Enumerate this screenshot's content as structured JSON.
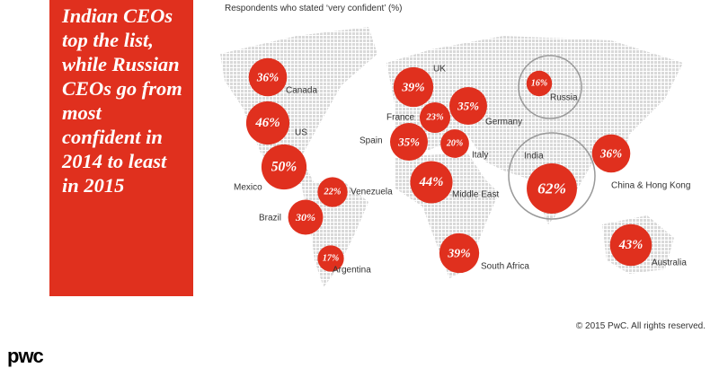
{
  "chart_data": {
    "type": "bubble-map",
    "title": "Indian CEOs top the list, while Russian CEOs go from most confident in 2014 to least in 2015",
    "subtitle": "Respondents who stated ‘very confident’  (%)",
    "categories": [
      "Canada",
      "US",
      "Mexico",
      "Venezuela",
      "Brazil",
      "Argentina",
      "UK",
      "France",
      "Germany",
      "Spain",
      "Italy",
      "Middle East",
      "South Africa",
      "Russia",
      "India",
      "China & Hong Kong",
      "Australia"
    ],
    "values": [
      36,
      46,
      50,
      22,
      30,
      17,
      39,
      23,
      35,
      35,
      20,
      44,
      39,
      16,
      62,
      36,
      43
    ],
    "value_labels": [
      "36%",
      "46%",
      "50%",
      "22%",
      "30%",
      "17%",
      "39%",
      "23%",
      "35%",
      "35%",
      "20%",
      "44%",
      "39%",
      "16%",
      "62%",
      "36%",
      "43%"
    ],
    "color": "#e0301e",
    "footer": "© 2015 PwC. All rights reserved.",
    "logo": "pwc"
  }
}
